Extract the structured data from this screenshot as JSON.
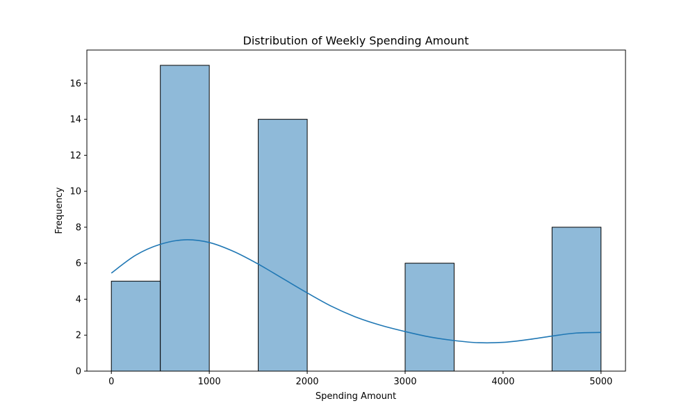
{
  "chart_data": {
    "type": "bar",
    "title": "Distribution of Weekly Spending Amount",
    "xlabel": "Spending Amount",
    "ylabel": "Frequency",
    "xlim": [
      -250,
      5250
    ],
    "ylim": [
      0,
      17.85
    ],
    "x_ticks": [
      0,
      1000,
      2000,
      3000,
      4000,
      5000
    ],
    "y_ticks": [
      0,
      2,
      4,
      6,
      8,
      10,
      12,
      14,
      16
    ],
    "bins": [
      {
        "x0": 0,
        "x1": 500,
        "count": 5
      },
      {
        "x0": 500,
        "x1": 1000,
        "count": 17
      },
      {
        "x0": 1000,
        "x1": 1500,
        "count": 0
      },
      {
        "x0": 1500,
        "x1": 2000,
        "count": 14
      },
      {
        "x0": 2000,
        "x1": 2500,
        "count": 0
      },
      {
        "x0": 2500,
        "x1": 3000,
        "count": 0
      },
      {
        "x0": 3000,
        "x1": 3500,
        "count": 6
      },
      {
        "x0": 3500,
        "x1": 4000,
        "count": 0
      },
      {
        "x0": 4000,
        "x1": 4500,
        "count": 0
      },
      {
        "x0": 4500,
        "x1": 5000,
        "count": 8
      }
    ],
    "kde": {
      "x": [
        0,
        250,
        500,
        750,
        1000,
        1250,
        1500,
        1750,
        2000,
        2250,
        2500,
        2750,
        3000,
        3250,
        3500,
        3750,
        4000,
        4250,
        4500,
        4750,
        5000
      ],
      "y": [
        5.45,
        6.45,
        7.05,
        7.3,
        7.15,
        6.65,
        5.95,
        5.15,
        4.35,
        3.6,
        3.0,
        2.55,
        2.2,
        1.9,
        1.7,
        1.58,
        1.6,
        1.75,
        1.95,
        2.12,
        2.15
      ]
    },
    "grid": false,
    "colors": {
      "bar_fill": "#8fbad9",
      "bar_edge": "#000000",
      "kde_line": "#1f77b4"
    }
  }
}
